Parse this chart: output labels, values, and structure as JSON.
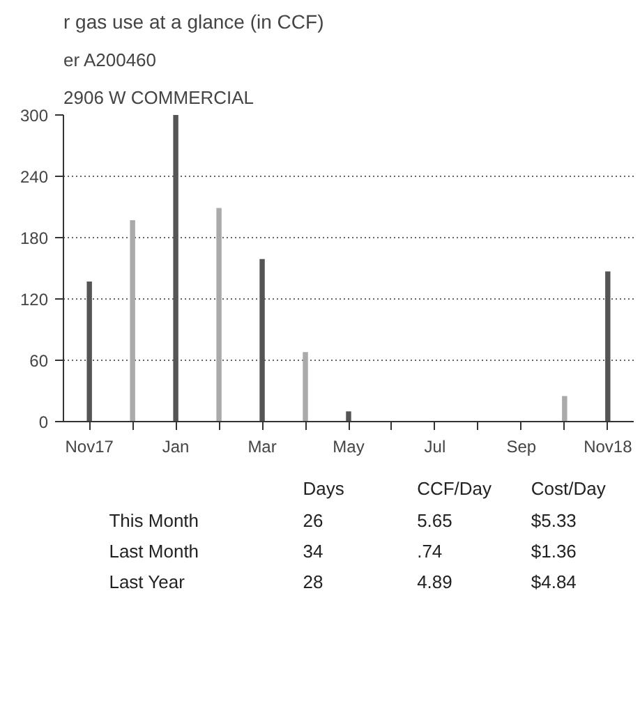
{
  "chart_data": {
    "type": "bar",
    "title": "r gas use at a glance (in CCF)",
    "subtitle": "2906 W COMMERCIAL",
    "categories": [
      "Nov17",
      null,
      "Jan",
      null,
      "Mar",
      null,
      "May",
      null,
      "Jul",
      null,
      "Sep",
      null,
      "Nov18"
    ],
    "values": [
      137,
      197,
      300,
      209,
      159,
      68,
      10,
      0,
      0,
      0,
      0,
      25,
      147
    ],
    "colors": [
      "#555555",
      "#aaaaaa",
      "#555555",
      "#aaaaaa",
      "#555555",
      "#aaaaaa",
      "#555555",
      "#aaaaaa",
      "#555555",
      "#aaaaaa",
      "#555555",
      "#aaaaaa",
      "#555555"
    ],
    "ylim": [
      0,
      300
    ],
    "yticks": [
      0,
      60,
      120,
      180,
      240,
      300
    ],
    "grid": "y",
    "line_style": "dotted",
    "annotations": [
      "er A200460",
      "Days",
      "CCF/Day",
      "Cost/Day",
      "This Month",
      "26",
      "5.65",
      "$5.33",
      "Last Month",
      "34",
      ".74",
      "$1.36",
      "Last Year",
      "28",
      "4.89",
      "$4.84"
    ]
  }
}
